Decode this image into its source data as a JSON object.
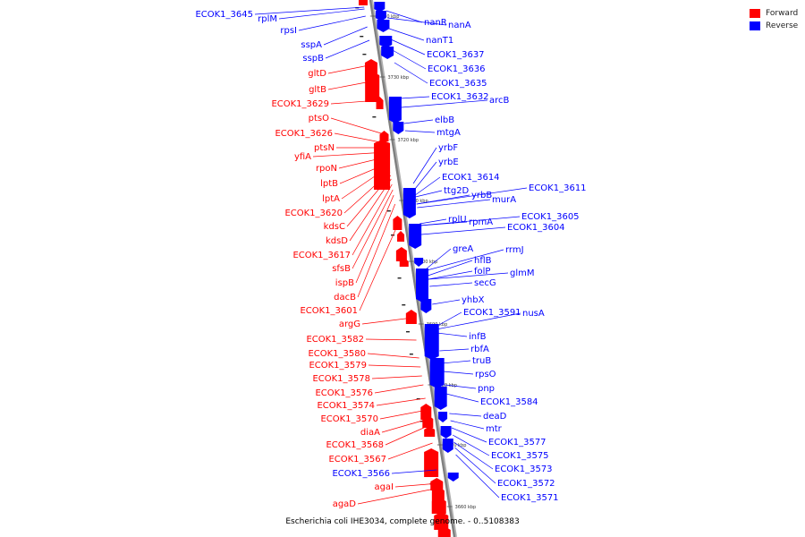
{
  "caption": "Escherichia coli IHE3034, complete genome. - 0..5108383",
  "legend": [
    {
      "label": "Forward",
      "color": "#ff0000"
    },
    {
      "label": "Reverse",
      "color": "#0000ff"
    }
  ],
  "colors": {
    "forward": "#ff0000",
    "reverse": "#0000ff",
    "backbone": "#808080"
  },
  "ticks": [
    "3740 kbp",
    "3730 kbp",
    "3720 kbp",
    "3710 kbp",
    "3700 kbp",
    "3690 kbp",
    "3680 kbp",
    "3670 kbp",
    "3660 kbp"
  ],
  "forward_genes": [
    "ECOK1_3645",
    "rplM",
    "rpsI",
    "sspA",
    "sspB",
    "gltD",
    "gltB",
    "ECOK1_3629",
    "ptsO",
    "ECOK1_3626",
    "ptsN",
    "yfiA",
    "rpoN",
    "lptB",
    "lptA",
    "ECOK1_3620",
    "kdsC",
    "kdsD",
    "ECOK1_3617",
    "sfsB",
    "ispB",
    "dacB",
    "ECOK1_3601",
    "argG",
    "ECOK1_3582",
    "ECOK1_3580",
    "ECOK1_3579",
    "ECOK1_3578",
    "ECOK1_3576",
    "ECOK1_3574",
    "ECOK1_3570",
    "diaA",
    "ECOK1_3568",
    "ECOK1_3567",
    "ECOK1_3566",
    "agaI",
    "agaD"
  ],
  "forward_colors": [
    "b",
    "b",
    "b",
    "b",
    "b",
    "r",
    "r",
    "r",
    "r",
    "r",
    "r",
    "r",
    "r",
    "r",
    "r",
    "r",
    "r",
    "r",
    "r",
    "r",
    "r",
    "r",
    "r",
    "r",
    "r",
    "r",
    "r",
    "r",
    "r",
    "r",
    "r",
    "r",
    "r",
    "r",
    "b",
    "r",
    "r"
  ],
  "reverse_genes": [
    "nanR",
    "nanA",
    "nanT1",
    "ECOK1_3637",
    "ECOK1_3636",
    "ECOK1_3635",
    "ECOK1_3632",
    "arcB",
    "elbB",
    "mtgA",
    "yrbF",
    "yrbE",
    "ECOK1_3614",
    "ttg2D",
    "yrbB",
    "ECOK1_3611",
    "murA",
    "rplU",
    "rpmA",
    "ECOK1_3605",
    "ECOK1_3604",
    "greA",
    "rrmJ",
    "hflB",
    "folP",
    "glmM",
    "secG",
    "yhbX",
    "ECOK1_3591",
    "nusA",
    "infB",
    "rbfA",
    "truB",
    "rpsO",
    "pnp",
    "ECOK1_3584",
    "deaD",
    "mtr",
    "ECOK1_3577",
    "ECOK1_3575",
    "ECOK1_3573",
    "ECOK1_3572",
    "ECOK1_3571"
  ],
  "chart_data": {
    "type": "genome-map",
    "sequence": "Escherichia coli IHE3034, complete genome",
    "range": [
      0,
      5108383
    ],
    "tick_labels": [
      "3740 kbp",
      "3730 kbp",
      "3720 kbp",
      "3710 kbp",
      "3700 kbp",
      "3690 kbp",
      "3680 kbp",
      "3670 kbp",
      "3660 kbp"
    ],
    "strands": [
      "Forward",
      "Reverse"
    ]
  }
}
